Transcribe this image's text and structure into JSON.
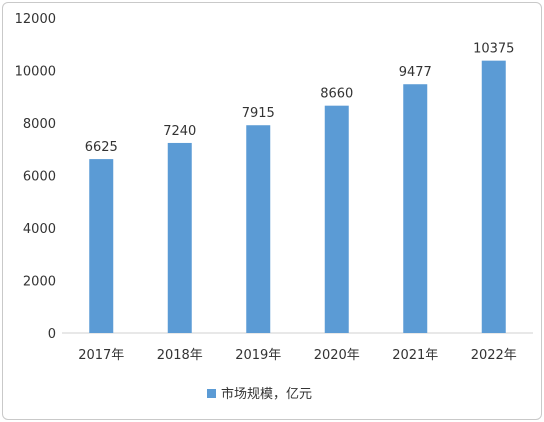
{
  "chart_data": {
    "type": "bar",
    "categories": [
      "2017年",
      "2018年",
      "2019年",
      "2020年",
      "2021年",
      "2022年"
    ],
    "series": [
      {
        "name": "市场规模，亿元",
        "values": [
          6625,
          7240,
          7915,
          8660,
          9477,
          10375
        ]
      }
    ],
    "data_labels": [
      "6625",
      "7240",
      "7915",
      "8660",
      "9477",
      "10375"
    ],
    "y_ticks": [
      "0",
      "2000",
      "4000",
      "6000",
      "8000",
      "10000",
      "12000"
    ],
    "ylim": [
      0,
      12000
    ],
    "grid": false,
    "legend_position": "bottom",
    "bar_color": "#5b9bd5"
  }
}
